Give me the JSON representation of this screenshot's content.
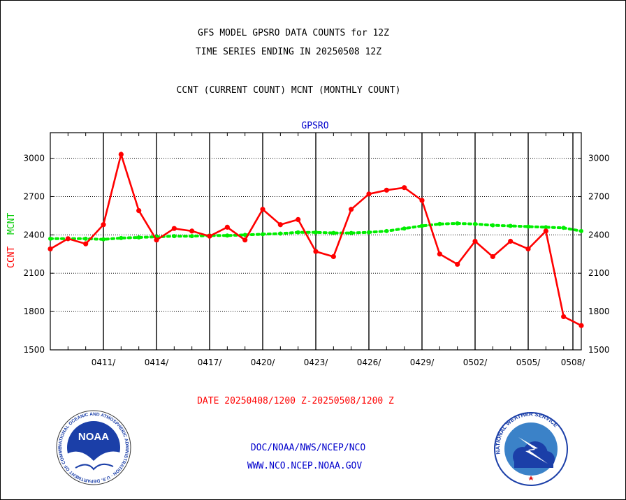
{
  "header": {
    "line1": "GFS MODEL GPSRO DATA COUNTS for 12Z",
    "line2": "TIME SERIES ENDING IN 20250508 12Z",
    "line3": "CCNT (CURRENT COUNT) MCNT (MONTHLY COUNT)"
  },
  "footer": {
    "date_range": "DATE 20250408/1200 Z-20250508/1200 Z",
    "org_path": "DOC/NOAA/NWS/NCEP/NCO",
    "website": "WWW.NCO.NCEP.NOAA.GOV"
  },
  "logos": {
    "noaa_text": "NOAA",
    "noaa_ring_text": "NATIONAL OCEANIC AND ATMOSPHERIC ADMINISTRATION · U.S. DEPARTMENT OF COMMERCE",
    "nws_ring_text": "NATIONAL WEATHER SERVICE"
  },
  "colors": {
    "ccnt": "#ff0000",
    "mcnt": "#00ee00",
    "title_blue": "#0000cc"
  },
  "chart_data": {
    "type": "line",
    "title": "GPSRO",
    "ylabel_ccnt": "CCNT",
    "ylabel_mcnt": "MCNT",
    "ylim": [
      1500,
      3200
    ],
    "y_ticks": [
      1500,
      1800,
      2100,
      2400,
      2700,
      3000
    ],
    "x_tick_labels": [
      "0411/",
      "0414/",
      "0417/",
      "0420/",
      "0423/",
      "0426/",
      "0429/",
      "0502/",
      "0505/",
      "0508/"
    ],
    "x_tick_days": [
      3,
      6,
      9,
      12,
      15,
      18,
      21,
      24,
      27,
      30
    ],
    "x_start": "20250408/1200",
    "x_end": "20250508/1200",
    "grid": true,
    "series": [
      {
        "name": "CCNT",
        "color": "#ff0000",
        "values": [
          2290,
          2370,
          2330,
          2480,
          3030,
          2590,
          2360,
          2450,
          2430,
          2390,
          2460,
          2360,
          2600,
          2480,
          2520,
          2270,
          2230,
          2600,
          2720,
          2750,
          2770,
          2670,
          2250,
          2170,
          2350,
          2230,
          2350,
          2290,
          2430,
          1760,
          1690
        ]
      },
      {
        "name": "MCNT",
        "color": "#00ee00",
        "values": [
          2370,
          2370,
          2370,
          2365,
          2375,
          2380,
          2385,
          2390,
          2390,
          2395,
          2395,
          2400,
          2405,
          2410,
          2420,
          2420,
          2415,
          2415,
          2420,
          2430,
          2450,
          2470,
          2485,
          2490,
          2485,
          2475,
          2470,
          2465,
          2460,
          2455,
          2430
        ]
      }
    ]
  }
}
